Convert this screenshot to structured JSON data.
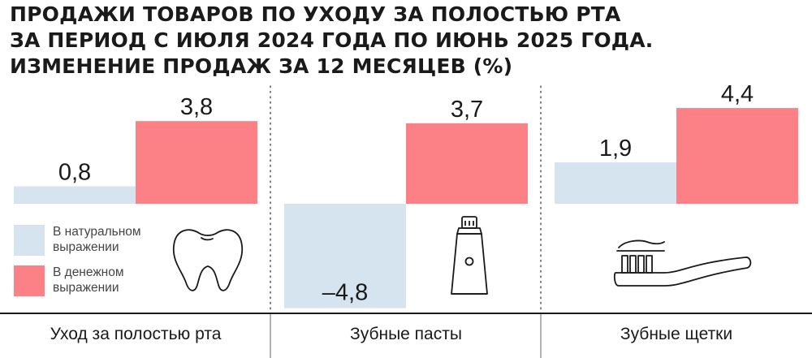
{
  "title_lines": [
    "ПРОДАЖИ ТОВАРОВ ПО УХОДУ ЗА ПОЛОСТЬЮ РТА",
    "ЗА ПЕРИОД С ИЮЛЯ 2024 ГОДА ПО ИЮНЬ 2025 ГОДА.",
    "ИЗМЕНЕНИЕ ПРОДАЖ ЗА 12 МЕСЯЦЕВ (%)"
  ],
  "legend": {
    "natural": {
      "label_line1": "В натуральном",
      "label_line2": "выражении",
      "color": "#d6e4f0"
    },
    "monetary": {
      "label_line1": "В денежном",
      "label_line2": "выражении",
      "color": "#fb8187"
    }
  },
  "icons": [
    "tooth-icon",
    "toothpaste-icon",
    "toothbrush-icon"
  ],
  "chart_data": {
    "type": "bar",
    "title": "ПРОДАЖИ ТОВАРОВ ПО УХОДУ ЗА ПОЛОСТЬЮ РТА ЗА ПЕРИОД С ИЮЛЯ 2024 ГОДА ПО ИЮНЬ 2025 ГОДА. ИЗМЕНЕНИЕ ПРОДАЖ ЗА 12 МЕСЯЦЕВ (%)",
    "categories": [
      "Уход за полостью рта",
      "Зубные пасты",
      "Зубные щетки"
    ],
    "series": [
      {
        "name": "В натуральном выражении",
        "values": [
          0.8,
          -4.8,
          1.9
        ],
        "labels": [
          "0,8",
          "–4,8",
          "1,9"
        ],
        "color": "#d6e4f0"
      },
      {
        "name": "В денежном выражении",
        "values": [
          3.8,
          3.7,
          4.4
        ],
        "labels": [
          "3,8",
          "3,7",
          "4,4"
        ],
        "color": "#fb8187"
      }
    ],
    "ylim": [
      -4.8,
      4.4
    ],
    "grid": false,
    "legend_position": "bottom-left"
  }
}
